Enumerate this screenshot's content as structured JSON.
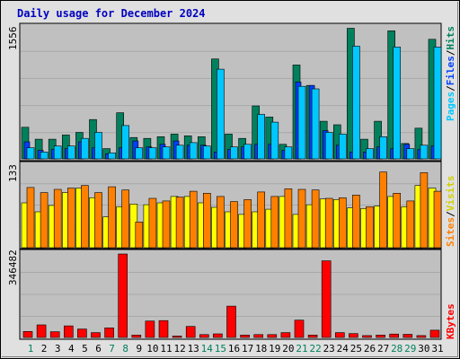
{
  "title": "Daily usage for December 2024",
  "legend": {
    "pages": "Pages",
    "files": "Files",
    "hits": "Hits",
    "sites": "Sites",
    "visits": "Visits",
    "kbytes": "KBytes",
    "sep": "/"
  },
  "colors": {
    "background": "#e0e0e0",
    "plot": "#c0c0c0",
    "title": "#0000c0",
    "hits": "#00805c",
    "files": "#0040ff",
    "pages": "#00c8ff",
    "visits": "#ffff00",
    "sites": "#ff8000",
    "kbytes": "#ff0000",
    "weekend": "#00805c",
    "weekday": "#000000"
  },
  "chart_data": {
    "type": "bar",
    "title": "Daily usage for December 2024",
    "x": [
      "1",
      "2",
      "3",
      "4",
      "5",
      "6",
      "7",
      "8",
      "9",
      "10",
      "11",
      "12",
      "13",
      "14",
      "15",
      "16",
      "17",
      "18",
      "19",
      "20",
      "21",
      "22",
      "23",
      "24",
      "25",
      "26",
      "27",
      "28",
      "29",
      "30",
      "31"
    ],
    "weekend_days": [
      1,
      7,
      8,
      14,
      15,
      21,
      22,
      28,
      29
    ],
    "panels": [
      {
        "name": "hits-files-pages",
        "ymax_label": "1556",
        "ylim": [
          0,
          1556
        ],
        "series": [
          {
            "name": "Hits",
            "values": [
              370,
              230,
              230,
              280,
              310,
              460,
              120,
              540,
              250,
              240,
              260,
              290,
              270,
              260,
              1170,
              290,
              240,
              620,
              490,
              170,
              1100,
              860,
              440,
              400,
              1530,
              230,
              440,
              1500,
              180,
              360,
              1400
            ]
          },
          {
            "name": "Files",
            "values": [
              200,
              100,
              110,
              120,
              200,
              130,
              60,
              130,
              210,
              140,
              170,
              210,
              160,
              160,
              80,
              110,
              140,
              170,
              170,
              100,
              900,
              860,
              330,
              160,
              80,
              80,
              140,
              120,
              170,
              110,
              150
            ]
          },
          {
            "name": "Pages",
            "values": [
              130,
              80,
              150,
              150,
              240,
              310,
              70,
              390,
              130,
              130,
              140,
              160,
              190,
              150,
              1050,
              140,
              170,
              520,
              430,
              140,
              850,
              820,
              310,
              290,
              1320,
              120,
              260,
              1310,
              120,
              160,
              1310
            ]
          }
        ]
      },
      {
        "name": "sites-visits",
        "ymax_label": "133",
        "ylim": [
          0,
          133
        ],
        "series": [
          {
            "name": "Visits",
            "values": [
              70,
              56,
              66,
              86,
              93,
              78,
              48,
              64,
              68,
              67,
              70,
              80,
              80,
              70,
              63,
              56,
              52,
              56,
              60,
              80,
              52,
              67,
              76,
              75,
              62,
              61,
              65,
              80,
              64,
              97,
              93
            ]
          },
          {
            "name": "Sites",
            "values": [
              94,
              86,
              91,
              93,
              97,
              86,
              95,
              90,
              40,
              77,
              73,
              79,
              88,
              85,
              80,
              72,
              75,
              87,
              80,
              92,
              91,
              90,
              77,
              78,
              82,
              64,
              118,
              85,
              73,
              117,
              88
            ]
          }
        ]
      },
      {
        "name": "kbytes",
        "ymax_label": "346482",
        "ylim": [
          0,
          346482
        ],
        "series": [
          {
            "name": "KBytes",
            "values": [
              25000,
              52000,
              24000,
              48000,
              35000,
              20000,
              40000,
              346482,
              10000,
              68000,
              70000,
              6000,
              46000,
              12000,
              15000,
              130000,
              10000,
              12000,
              12000,
              20000,
              72000,
              10000,
              318000,
              20000,
              16000,
              8000,
              10000,
              14000,
              13000,
              8000,
              30000
            ]
          }
        ]
      }
    ]
  }
}
